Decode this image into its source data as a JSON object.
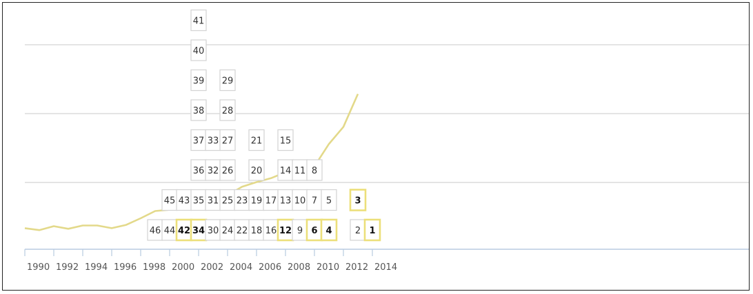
{
  "chart_data": {
    "type": "line",
    "x_axis": {
      "range": [
        1990,
        2015
      ],
      "ticks": [
        1990,
        1992,
        1994,
        1996,
        1998,
        2000,
        2002,
        2004,
        2006,
        2008,
        2010,
        2012,
        2014
      ]
    },
    "grid": "horizontal",
    "line_color": "#e3d98a",
    "highlight_color": "#ecdf7a",
    "trend_line": {
      "x": [
        1990,
        1991,
        1992,
        1993,
        1994,
        1995,
        1996,
        1997,
        1998,
        1999,
        2000,
        2001,
        2002,
        2003,
        2004,
        2005,
        2006,
        2007,
        2008,
        2009,
        2010,
        2011,
        2012,
        2013
      ],
      "y": [
        0.3,
        0.27,
        0.33,
        0.29,
        0.34,
        0.34,
        0.3,
        0.35,
        0.45,
        0.56,
        0.58,
        0.64,
        0.73,
        0.7,
        0.8,
        0.93,
        1.0,
        1.06,
        1.15,
        1.24,
        1.24,
        1.58,
        1.84,
        2.34
      ],
      "y_range": [
        0,
        3
      ]
    },
    "markers": [
      {
        "year": 1999,
        "stack": [
          "46"
        ],
        "highlight": []
      },
      {
        "year": 2000,
        "stack": [
          "44",
          "45"
        ],
        "highlight": []
      },
      {
        "year": 2001,
        "stack": [
          "42",
          "43"
        ],
        "highlight": [
          "42"
        ]
      },
      {
        "year": 2002,
        "stack": [
          "34",
          "35",
          "36",
          "37",
          "38",
          "39",
          "40",
          "41"
        ],
        "highlight": [
          "34"
        ]
      },
      {
        "year": 2003,
        "stack": [
          "30",
          "31",
          "32",
          "33"
        ],
        "highlight": []
      },
      {
        "year": 2004,
        "stack": [
          "24",
          "25",
          "26",
          "27",
          "28",
          "29"
        ],
        "highlight": []
      },
      {
        "year": 2005,
        "stack": [
          "22",
          "23"
        ],
        "highlight": []
      },
      {
        "year": 2006,
        "stack": [
          "18",
          "19",
          "20",
          "21"
        ],
        "highlight": []
      },
      {
        "year": 2007,
        "stack": [
          "16",
          "17"
        ],
        "highlight": []
      },
      {
        "year": 2008,
        "stack": [
          "12",
          "13",
          "14",
          "15"
        ],
        "highlight": [
          "12"
        ]
      },
      {
        "year": 2009,
        "stack": [
          "9",
          "10",
          "11"
        ],
        "highlight": []
      },
      {
        "year": 2010,
        "stack": [
          "6",
          "7",
          "8"
        ],
        "highlight": [
          "6"
        ]
      },
      {
        "year": 2011,
        "stack": [
          "4",
          "5"
        ],
        "highlight": [
          "4"
        ]
      },
      {
        "year": 2013,
        "stack": [
          "2",
          "3"
        ],
        "highlight": [
          "3"
        ]
      },
      {
        "year": 2014,
        "stack": [
          "1"
        ],
        "highlight": [
          "1"
        ]
      }
    ]
  }
}
